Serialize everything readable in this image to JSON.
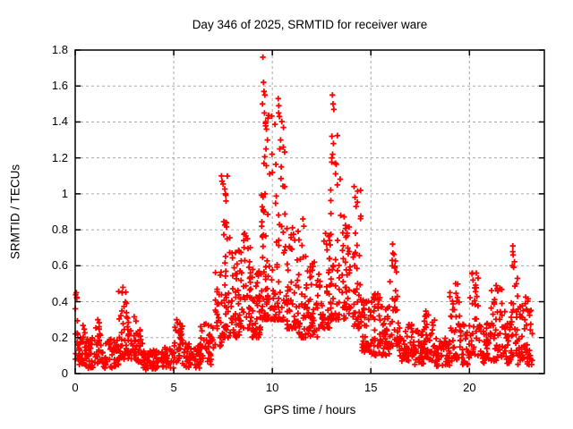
{
  "chart_data": {
    "type": "scatter",
    "title": "Day 346 of 2025, SRMTID for receiver ware",
    "xlabel": "GPS time / hours",
    "ylabel": "SRMTID / TECUs",
    "xlim": [
      0,
      23.8
    ],
    "ylim": [
      0,
      1.8
    ],
    "xticks": [
      0,
      5,
      10,
      15,
      20
    ],
    "xtick_labels": [
      "0",
      "5",
      "10",
      "15",
      "20"
    ],
    "yticks": [
      0,
      0.2,
      0.4,
      0.6,
      0.8,
      1,
      1.2,
      1.4,
      1.6,
      1.8
    ],
    "ytick_labels": [
      "0",
      "0.2",
      "0.4",
      "0.6",
      "0.8",
      "1",
      "1.2",
      "1.4",
      "1.6",
      "1.8"
    ],
    "grid": true,
    "legend": "none",
    "marker": "plus",
    "marker_color": "#ff0000",
    "grid_color": "#a8a8a8",
    "axis_color": "#000000",
    "series_name": "SRMTID",
    "seed": 20251346,
    "density_bins": [
      [
        0.0,
        0.15,
        0.08,
        0.45,
        14
      ],
      [
        0.15,
        0.5,
        0.05,
        0.28,
        25
      ],
      [
        0.5,
        1.0,
        0.03,
        0.2,
        35
      ],
      [
        1.0,
        1.4,
        0.05,
        0.3,
        28
      ],
      [
        1.4,
        2.2,
        0.03,
        0.2,
        50
      ],
      [
        2.2,
        2.65,
        0.08,
        0.48,
        32
      ],
      [
        2.65,
        3.1,
        0.08,
        0.32,
        32
      ],
      [
        3.1,
        3.45,
        0.06,
        0.25,
        22
      ],
      [
        3.45,
        4.4,
        0.02,
        0.13,
        55
      ],
      [
        4.4,
        5.0,
        0.03,
        0.15,
        38
      ],
      [
        5.0,
        5.45,
        0.06,
        0.3,
        30
      ],
      [
        5.45,
        6.3,
        0.03,
        0.17,
        50
      ],
      [
        6.3,
        7.1,
        0.05,
        0.28,
        48
      ],
      [
        7.1,
        7.45,
        0.15,
        0.62,
        26
      ],
      [
        7.45,
        7.85,
        0.2,
        1.1,
        40
      ],
      [
        7.85,
        8.35,
        0.2,
        0.8,
        40
      ],
      [
        8.35,
        8.95,
        0.25,
        0.78,
        45
      ],
      [
        8.95,
        9.4,
        0.2,
        0.58,
        40
      ],
      [
        9.4,
        9.72,
        0.3,
        1.62,
        40
      ],
      [
        9.72,
        10.15,
        0.3,
        1.5,
        42
      ],
      [
        10.15,
        10.65,
        0.3,
        1.45,
        42
      ],
      [
        10.65,
        11.25,
        0.25,
        0.85,
        45
      ],
      [
        11.25,
        11.75,
        0.2,
        0.86,
        38
      ],
      [
        11.75,
        12.35,
        0.2,
        0.62,
        45
      ],
      [
        12.35,
        12.95,
        0.25,
        0.78,
        42
      ],
      [
        12.95,
        13.45,
        0.3,
        1.55,
        45
      ],
      [
        13.45,
        14.0,
        0.3,
        0.9,
        42
      ],
      [
        14.0,
        14.5,
        0.25,
        1.05,
        38
      ],
      [
        14.5,
        15.0,
        0.12,
        0.5,
        40
      ],
      [
        15.0,
        15.6,
        0.1,
        0.45,
        48
      ],
      [
        15.6,
        15.95,
        0.1,
        0.38,
        28
      ],
      [
        15.95,
        16.35,
        0.15,
        0.72,
        30
      ],
      [
        16.35,
        17.1,
        0.07,
        0.3,
        50
      ],
      [
        17.1,
        17.7,
        0.05,
        0.25,
        42
      ],
      [
        17.7,
        18.25,
        0.07,
        0.36,
        40
      ],
      [
        18.25,
        19.0,
        0.04,
        0.2,
        48
      ],
      [
        19.0,
        19.5,
        0.07,
        0.5,
        35
      ],
      [
        19.5,
        20.0,
        0.05,
        0.28,
        35
      ],
      [
        20.0,
        20.45,
        0.1,
        0.56,
        32
      ],
      [
        20.45,
        21.1,
        0.05,
        0.28,
        42
      ],
      [
        21.1,
        21.8,
        0.07,
        0.49,
        45
      ],
      [
        21.8,
        22.1,
        0.05,
        0.28,
        22
      ],
      [
        22.1,
        22.45,
        0.1,
        0.71,
        30
      ],
      [
        22.45,
        23.2,
        0.05,
        0.45,
        55
      ]
    ],
    "peak_points": [
      [
        9.52,
        1.76
      ],
      [
        9.55,
        1.62
      ],
      [
        9.58,
        1.57
      ],
      [
        9.5,
        1.5
      ],
      [
        9.62,
        1.55
      ],
      [
        9.6,
        1.45
      ],
      [
        9.66,
        1.4
      ],
      [
        9.7,
        1.36
      ],
      [
        9.75,
        1.3
      ],
      [
        9.68,
        1.25
      ],
      [
        10.3,
        1.53
      ],
      [
        10.33,
        1.49
      ],
      [
        10.32,
        1.45
      ],
      [
        10.36,
        1.43
      ],
      [
        10.42,
        1.3
      ],
      [
        10.38,
        1.25
      ],
      [
        10.45,
        1.15
      ],
      [
        13.05,
        1.55
      ],
      [
        13.08,
        1.5
      ],
      [
        13.12,
        1.47
      ],
      [
        13.02,
        1.32
      ],
      [
        13.1,
        1.28
      ],
      [
        13.06,
        1.22
      ],
      [
        13.3,
        1.05
      ],
      [
        14.15,
        1.04
      ],
      [
        14.2,
        0.98
      ],
      [
        14.25,
        0.93
      ],
      [
        7.42,
        1.1
      ],
      [
        7.45,
        1.07
      ],
      [
        7.62,
        1.0
      ],
      [
        7.65,
        0.96
      ],
      [
        11.55,
        0.86
      ],
      [
        11.6,
        0.82
      ],
      [
        16.1,
        0.72
      ],
      [
        16.12,
        0.67
      ],
      [
        16.08,
        0.63
      ],
      [
        22.2,
        0.71
      ],
      [
        22.22,
        0.66
      ],
      [
        22.18,
        0.6
      ],
      [
        2.42,
        0.48
      ],
      [
        2.38,
        0.45
      ],
      [
        0.06,
        0.45
      ],
      [
        0.08,
        0.42
      ],
      [
        20.15,
        0.56
      ],
      [
        20.18,
        0.52
      ],
      [
        19.3,
        0.5
      ],
      [
        21.35,
        0.49
      ],
      [
        8.6,
        0.78
      ],
      [
        8.55,
        0.74
      ],
      [
        12.7,
        0.78
      ],
      [
        12.75,
        0.72
      ],
      [
        5.15,
        0.3
      ],
      [
        1.15,
        0.3
      ]
    ]
  }
}
